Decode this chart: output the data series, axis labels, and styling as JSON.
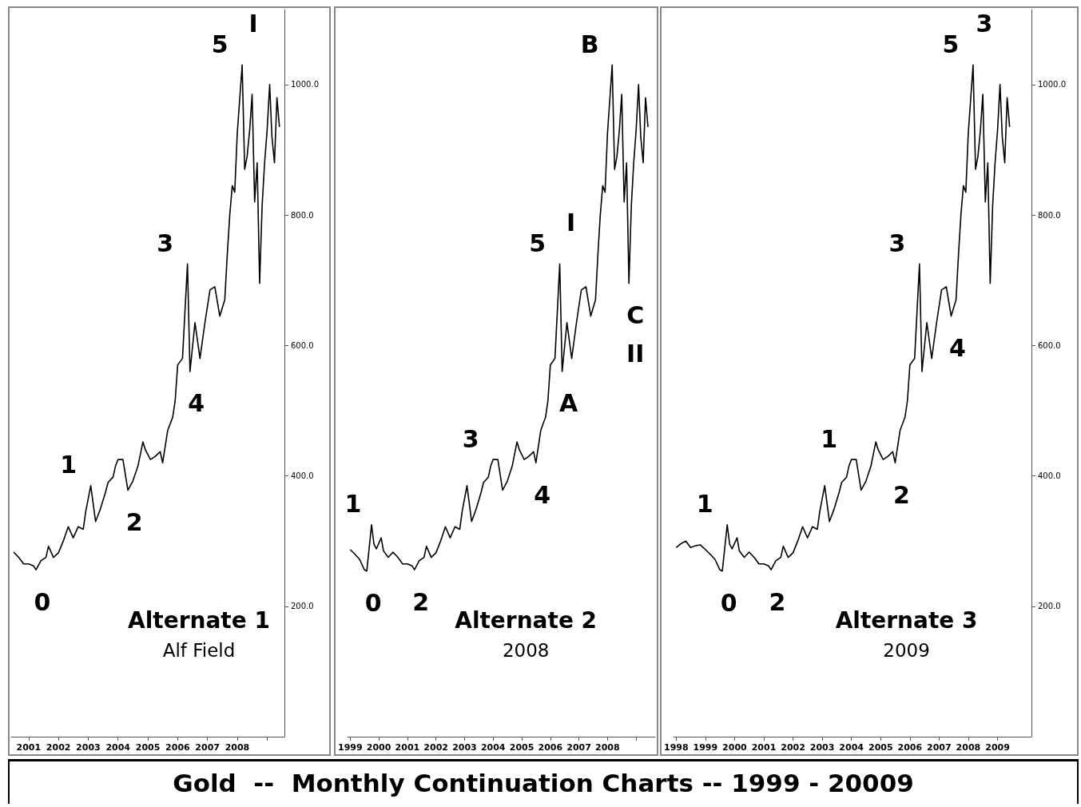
{
  "chart_data": [
    {
      "type": "line",
      "title": "Alternate 1",
      "subtitle": "Alf Field",
      "xlim": [
        "2000-06",
        "2009-08"
      ],
      "xticks": [
        "2001",
        "2002",
        "2003",
        "2004",
        "2005",
        "2006",
        "2007",
        "2008",
        {
          "value": "2009",
          "label": null
        }
      ],
      "ylim": [
        0,
        1115
      ],
      "yticks": [
        {
          "value": 200,
          "label": "200.0"
        },
        {
          "value": 400,
          "label": "400.0"
        },
        {
          "value": 600,
          "label": "600.0"
        },
        {
          "value": 800,
          "label": "800.0"
        },
        {
          "value": 1000,
          "label": "1000.0"
        }
      ],
      "grid": false,
      "marker": "none",
      "series": [
        {
          "color": "#000000",
          "x": [
            "2000-07",
            "2000-09",
            "2000-11",
            "2001-01",
            "2001-03",
            "2001-04",
            "2001-06",
            "2001-08",
            "2001-09",
            "2001-11",
            "2002-01",
            "2002-03",
            "2002-05",
            "2002-07",
            "2002-09",
            "2002-11",
            "2002-12",
            "2003-02",
            "2003-04",
            "2003-06",
            "2003-08",
            "2003-09",
            "2003-11",
            "2003-12",
            "2004-01",
            "2004-03",
            "2004-05",
            "2004-07",
            "2004-09",
            "2004-11",
            "2004-12",
            "2005-02",
            "2005-04",
            "2005-06",
            "2005-07",
            "2005-09",
            "2005-11",
            "2005-12",
            "2006-01",
            "2006-03",
            "2006-05",
            "2006-06",
            "2006-08",
            "2006-10",
            "2006-12",
            "2007-02",
            "2007-04",
            "2007-06",
            "2007-08",
            "2007-09",
            "2007-10",
            "2007-11",
            "2007-12",
            "2008-01",
            "2008-03",
            "2008-04",
            "2008-05",
            "2008-06",
            "2008-07",
            "2008-08",
            "2008-09",
            "2008-10",
            "2008-11",
            "2008-12",
            "2009-01",
            "2009-02",
            "2009-03",
            "2009-04",
            "2009-05",
            "2009-06"
          ],
          "values": [
            283,
            275,
            265,
            265,
            262,
            256,
            270,
            275,
            292,
            275,
            282,
            300,
            322,
            305,
            322,
            318,
            345,
            385,
            330,
            350,
            375,
            390,
            398,
            415,
            425,
            425,
            378,
            392,
            415,
            452,
            440,
            425,
            430,
            437,
            420,
            470,
            490,
            515,
            570,
            580,
            725,
            560,
            635,
            580,
            635,
            685,
            690,
            645,
            670,
            740,
            800,
            845,
            835,
            925,
            1030,
            870,
            890,
            930,
            985,
            820,
            880,
            695,
            815,
            880,
            930,
            1000,
            920,
            880,
            980,
            935
          ]
        }
      ],
      "annotations": [
        {
          "text": "0",
          "x": "2001-04",
          "y": 256
        },
        {
          "text": "1",
          "x": "2003-02",
          "y": 385
        },
        {
          "text": "2",
          "x": "2004-05",
          "y": 378
        },
        {
          "text": "3",
          "x": "2006-05",
          "y": 725
        },
        {
          "text": "4",
          "x": "2006-06",
          "y": 560
        },
        {
          "text": "5",
          "x": "2008-03",
          "y": 1030
        },
        {
          "text": "I",
          "x": "2008-03",
          "y": 1030
        }
      ]
    },
    {
      "type": "line",
      "title": "Alternate 2",
      "subtitle": "2008",
      "xlim": [
        "1998-12",
        "2009-09"
      ],
      "xticks": [
        "1999",
        "2000",
        "2001",
        "2002",
        "2003",
        "2004",
        "2005",
        "2006",
        "2007",
        "2008",
        {
          "value": "2009",
          "label": null
        }
      ],
      "ylim": [
        0,
        1115
      ],
      "tick_labels": "x",
      "grid": false,
      "marker": "none",
      "series": [
        {
          "color": "#000000",
          "x": [
            "1999-01",
            "1999-03",
            "1999-05",
            "1999-07",
            "1999-08",
            "1999-09",
            "1999-10",
            "1999-11",
            "1999-12",
            "2000-02",
            "2000-03",
            "2000-05",
            "2000-07",
            "2000-09",
            "2000-11",
            "2001-01",
            "2001-03",
            "2001-04",
            "2001-06",
            "2001-08",
            "2001-09",
            "2001-11",
            "2002-01",
            "2002-03",
            "2002-05",
            "2002-07",
            "2002-09",
            "2002-11",
            "2002-12",
            "2003-02",
            "2003-04",
            "2003-06",
            "2003-08",
            "2003-09",
            "2003-11",
            "2003-12",
            "2004-01",
            "2004-03",
            "2004-05",
            "2004-07",
            "2004-09",
            "2004-11",
            "2004-12",
            "2005-02",
            "2005-04",
            "2005-06",
            "2005-07",
            "2005-09",
            "2005-11",
            "2005-12",
            "2006-01",
            "2006-03",
            "2006-05",
            "2006-06",
            "2006-08",
            "2006-10",
            "2006-12",
            "2007-02",
            "2007-04",
            "2007-06",
            "2007-08",
            "2007-09",
            "2007-10",
            "2007-11",
            "2007-12",
            "2008-01",
            "2008-03",
            "2008-04",
            "2008-05",
            "2008-06",
            "2008-07",
            "2008-08",
            "2008-09",
            "2008-10",
            "2008-11",
            "2008-12",
            "2009-01",
            "2009-02",
            "2009-03",
            "2009-04",
            "2009-05",
            "2009-06"
          ],
          "values": [
            287,
            280,
            272,
            256,
            254,
            290,
            325,
            295,
            288,
            305,
            285,
            275,
            283,
            275,
            265,
            265,
            262,
            256,
            270,
            275,
            292,
            275,
            282,
            300,
            322,
            305,
            322,
            318,
            345,
            385,
            330,
            350,
            375,
            390,
            398,
            415,
            425,
            425,
            378,
            392,
            415,
            452,
            440,
            425,
            430,
            437,
            420,
            470,
            490,
            515,
            570,
            580,
            725,
            560,
            635,
            580,
            635,
            685,
            690,
            645,
            670,
            740,
            800,
            845,
            835,
            925,
            1030,
            870,
            890,
            930,
            985,
            820,
            880,
            695,
            815,
            880,
            930,
            1000,
            920,
            880,
            980,
            935
          ]
        }
      ],
      "annotations": [
        {
          "text": "0",
          "x": "1999-08",
          "y": 254
        },
        {
          "text": "1",
          "x": "1999-10",
          "y": 325
        },
        {
          "text": "2",
          "x": "2001-04",
          "y": 256
        },
        {
          "text": "3",
          "x": "2004-01",
          "y": 425
        },
        {
          "text": "4",
          "x": "2005-07",
          "y": 420
        },
        {
          "text": "5",
          "x": "2006-05",
          "y": 725
        },
        {
          "text": "I",
          "x": "2006-05",
          "y": 725
        },
        {
          "text": "A",
          "x": "2006-06",
          "y": 560
        },
        {
          "text": "B",
          "x": "2008-03",
          "y": 1030
        },
        {
          "text": "C",
          "x": "2008-10",
          "y": 695
        },
        {
          "text": "II",
          "x": "2008-10",
          "y": 695
        }
      ]
    },
    {
      "type": "line",
      "title": "Alternate 3",
      "subtitle": "2009",
      "xlim": [
        "1997-12",
        "2010-03"
      ],
      "xticks": [
        "1998",
        "1999",
        "2000",
        "2001",
        "2002",
        "2003",
        "2004",
        "2005",
        "2006",
        "2007",
        "2008",
        "2009"
      ],
      "ylim": [
        0,
        1115
      ],
      "yticks": [
        {
          "value": 200,
          "label": "200.0"
        },
        {
          "value": 400,
          "label": "400.0"
        },
        {
          "value": 600,
          "label": "600.0"
        },
        {
          "value": 800,
          "label": "800.0"
        },
        {
          "value": 1000,
          "label": "1000.0"
        }
      ],
      "grid": false,
      "marker": "none",
      "series": [
        {
          "color": "#000000",
          "x": [
            "1998-01",
            "1998-03",
            "1998-05",
            "1998-07",
            "1998-09",
            "1998-11",
            "1999-01",
            "1999-03",
            "1999-05",
            "1999-07",
            "1999-08",
            "1999-09",
            "1999-10",
            "1999-11",
            "1999-12",
            "2000-02",
            "2000-03",
            "2000-05",
            "2000-07",
            "2000-09",
            "2000-11",
            "2001-01",
            "2001-03",
            "2001-04",
            "2001-06",
            "2001-08",
            "2001-09",
            "2001-11",
            "2002-01",
            "2002-03",
            "2002-05",
            "2002-07",
            "2002-09",
            "2002-11",
            "2002-12",
            "2003-02",
            "2003-04",
            "2003-06",
            "2003-08",
            "2003-09",
            "2003-11",
            "2003-12",
            "2004-01",
            "2004-03",
            "2004-05",
            "2004-07",
            "2004-09",
            "2004-11",
            "2004-12",
            "2005-02",
            "2005-04",
            "2005-06",
            "2005-07",
            "2005-09",
            "2005-11",
            "2005-12",
            "2006-01",
            "2006-03",
            "2006-05",
            "2006-06",
            "2006-08",
            "2006-10",
            "2006-12",
            "2007-02",
            "2007-04",
            "2007-06",
            "2007-08",
            "2007-09",
            "2007-10",
            "2007-11",
            "2007-12",
            "2008-01",
            "2008-03",
            "2008-04",
            "2008-05",
            "2008-06",
            "2008-07",
            "2008-08",
            "2008-09",
            "2008-10",
            "2008-11",
            "2008-12",
            "2009-01",
            "2009-02",
            "2009-03",
            "2009-04",
            "2009-05",
            "2009-06"
          ],
          "values": [
            290,
            296,
            300,
            290,
            293,
            294,
            287,
            280,
            272,
            256,
            254,
            290,
            325,
            295,
            288,
            305,
            285,
            275,
            283,
            275,
            265,
            265,
            262,
            256,
            270,
            275,
            292,
            275,
            282,
            300,
            322,
            305,
            322,
            318,
            345,
            385,
            330,
            350,
            375,
            390,
            398,
            415,
            425,
            425,
            378,
            392,
            415,
            452,
            440,
            425,
            430,
            437,
            420,
            470,
            490,
            515,
            570,
            580,
            725,
            560,
            635,
            580,
            635,
            685,
            690,
            645,
            670,
            740,
            800,
            845,
            835,
            925,
            1030,
            870,
            890,
            930,
            985,
            820,
            880,
            695,
            815,
            880,
            930,
            1000,
            920,
            880,
            980,
            935
          ]
        }
      ],
      "annotations": [
        {
          "text": "1",
          "x": "1999-10",
          "y": 325
        },
        {
          "text": "0",
          "x": "1999-08",
          "y": 254
        },
        {
          "text": "2",
          "x": "2001-04",
          "y": 256
        },
        {
          "text": "1",
          "x": "2004-01",
          "y": 425
        },
        {
          "text": "2",
          "x": "2005-07",
          "y": 420
        },
        {
          "text": "3",
          "x": "2006-05",
          "y": 725
        },
        {
          "text": "4",
          "x": "2007-06",
          "y": 645
        },
        {
          "text": "5",
          "x": "2008-03",
          "y": 1030
        },
        {
          "text": "3",
          "x": "2008-03",
          "y": 1030
        }
      ]
    },
    {
      "type": "other",
      "title": "Gold  --  Monthly Continuation Charts -- 1999 - 20009"
    }
  ]
}
